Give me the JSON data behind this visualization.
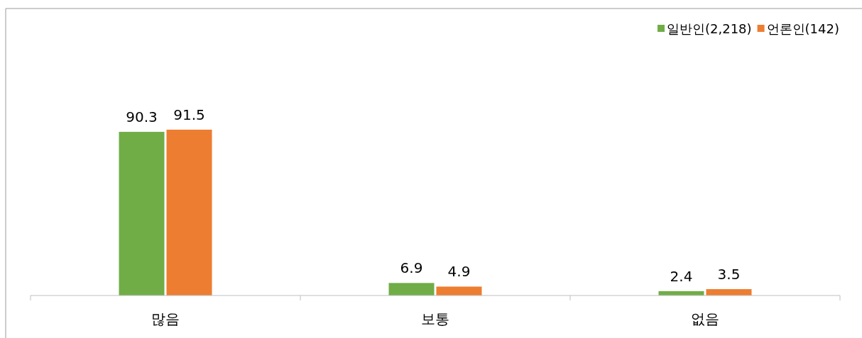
{
  "chart_data": {
    "type": "bar",
    "categories": [
      "많음",
      "보통",
      "없음"
    ],
    "data_labels": true,
    "legend": "top right",
    "series": [
      {
        "name": "일반인(2,218)",
        "color": "#70ad47",
        "values": [
          90.3,
          6.9,
          2.4
        ]
      },
      {
        "name": "언론인(142)",
        "color": "#ed7d31",
        "values": [
          91.5,
          4.9,
          3.5
        ]
      }
    ]
  }
}
